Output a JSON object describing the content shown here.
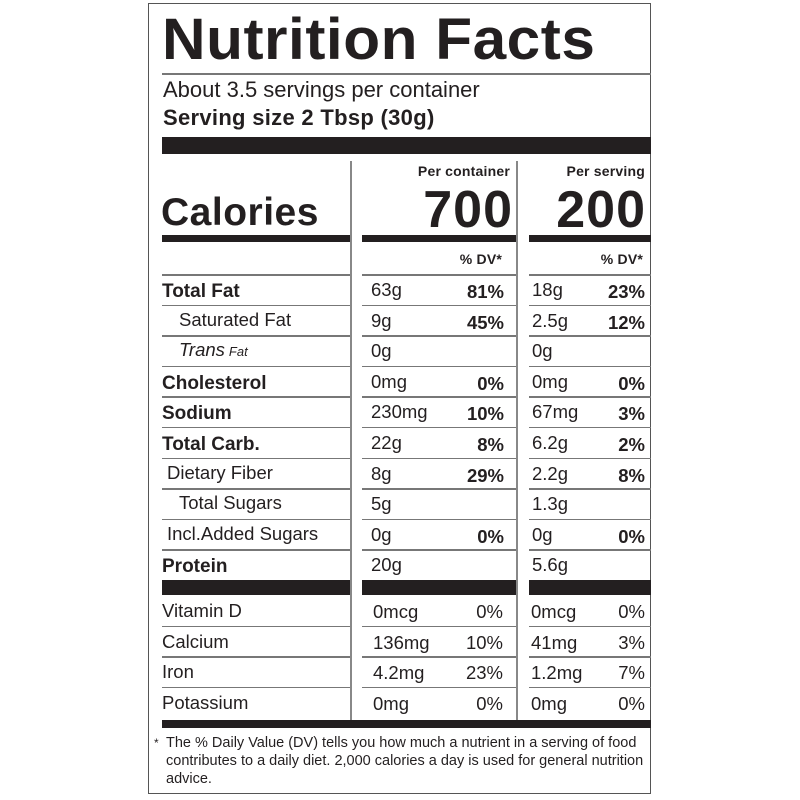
{
  "title": "Nutrition Facts",
  "servings_per_container": "About 3.5 servings per container",
  "serving_size": "Serving size 2 Tbsp (30g)",
  "columns": {
    "per_container": "Per container",
    "per_serving": "Per serving",
    "dv_header": "% DV*"
  },
  "calories": {
    "label": "Calories",
    "per_container": "700",
    "per_serving": "200"
  },
  "nutrients": [
    {
      "name": "Total Fat",
      "bold": true,
      "indent": 0,
      "container_amount": "63g",
      "container_dv": "81%",
      "serving_amount": "18g",
      "serving_dv": "23%"
    },
    {
      "name": "Saturated Fat",
      "bold": false,
      "indent": 2,
      "container_amount": "9g",
      "container_dv": "45%",
      "serving_amount": "2.5g",
      "serving_dv": "12%"
    },
    {
      "name": "Trans",
      "name_suffix": "Fat",
      "italic": true,
      "indent": 2,
      "container_amount": "0g",
      "container_dv": "",
      "serving_amount": "0g",
      "serving_dv": ""
    },
    {
      "name": "Cholesterol",
      "bold": true,
      "indent": 0,
      "container_amount": "0mg",
      "container_dv": "0%",
      "serving_amount": "0mg",
      "serving_dv": "0%"
    },
    {
      "name": "Sodium",
      "bold": true,
      "indent": 0,
      "container_amount": "230mg",
      "container_dv": "10%",
      "serving_amount": "67mg",
      "serving_dv": "3%"
    },
    {
      "name": "Total Carb.",
      "bold": true,
      "indent": 0,
      "container_amount": "22g",
      "container_dv": "8%",
      "serving_amount": "6.2g",
      "serving_dv": "2%"
    },
    {
      "name": "Dietary Fiber",
      "bold": false,
      "indent": 1,
      "container_amount": "8g",
      "container_dv": "29%",
      "serving_amount": "2.2g",
      "serving_dv": "8%"
    },
    {
      "name": "Total Sugars",
      "bold": false,
      "indent": 2,
      "container_amount": "5g",
      "container_dv": "",
      "serving_amount": "1.3g",
      "serving_dv": ""
    },
    {
      "name": "Incl.Added Sugars",
      "bold": false,
      "indent": 1,
      "container_amount": "0g",
      "container_dv": "0%",
      "serving_amount": "0g",
      "serving_dv": "0%"
    },
    {
      "name": "Protein",
      "bold": true,
      "indent": 0,
      "container_amount": "20g",
      "container_dv": "",
      "serving_amount": "5.6g",
      "serving_dv": ""
    }
  ],
  "vitamins": [
    {
      "name": "Vitamin D",
      "container_amount": "0mcg",
      "container_dv": "0%",
      "serving_amount": "0mcg",
      "serving_dv": "0%"
    },
    {
      "name": "Calcium",
      "container_amount": "136mg",
      "container_dv": "10%",
      "serving_amount": "41mg",
      "serving_dv": "3%"
    },
    {
      "name": "Iron",
      "container_amount": "4.2mg",
      "container_dv": "23%",
      "serving_amount": "1.2mg",
      "serving_dv": "7%"
    },
    {
      "name": "Potassium",
      "container_amount": "0mg",
      "container_dv": "0%",
      "serving_amount": "0mg",
      "serving_dv": "0%"
    }
  ],
  "footnote": {
    "star": "*",
    "text": "The % Daily Value (DV) tells you how much a nutrient in a serving of food contributes to a daily diet. 2,000 calories a day is used for general nutrition advice."
  },
  "colors": {
    "ink": "#231f20",
    "rule": "#777777",
    "background": "#ffffff"
  }
}
